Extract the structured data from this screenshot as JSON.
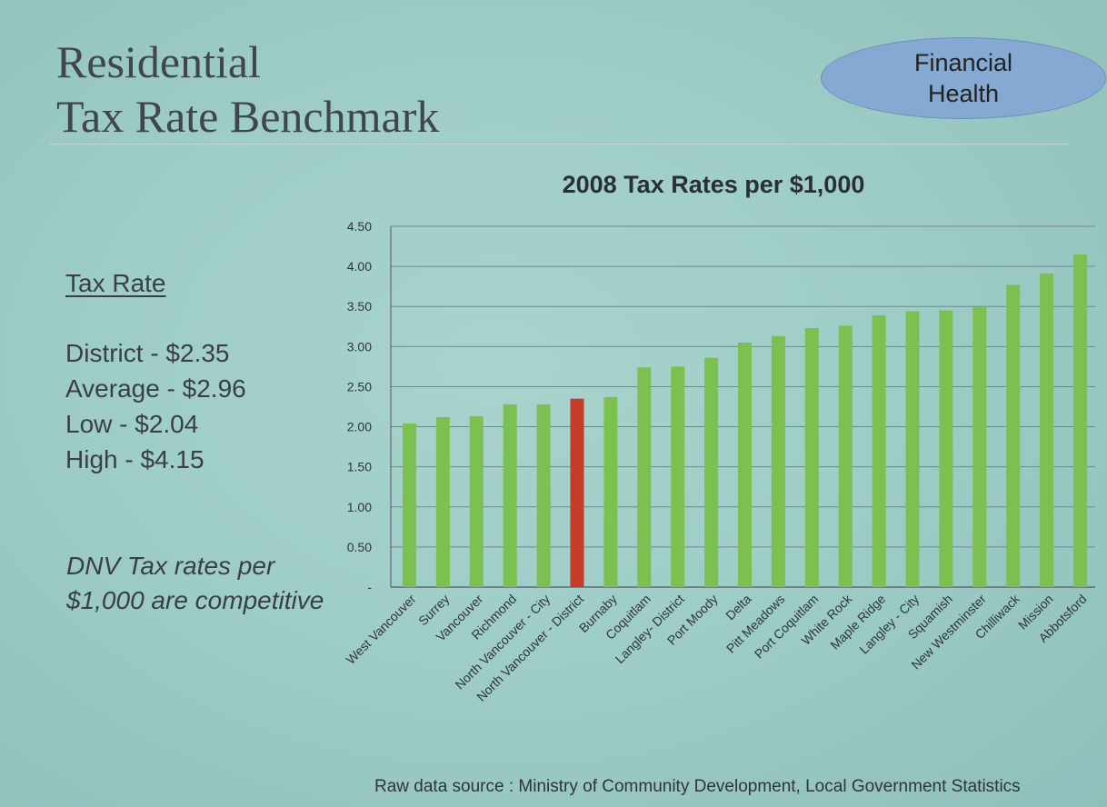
{
  "slide": {
    "title_line1": "Residential",
    "title_line2": "Tax Rate Benchmark",
    "badge_line1": "Financial",
    "badge_line2": "Health"
  },
  "summary": {
    "heading": "Tax Rate",
    "lines": [
      "District - $2.35",
      "Average - $2.96",
      "Low - $2.04",
      "High - $4.15"
    ],
    "note": "DNV Tax rates per $1,000  are competitive"
  },
  "source": "Raw data source : Ministry of Community Development, Local Government Statistics",
  "colors": {
    "bar": "#7cc04f",
    "highlight": "#c63b2a",
    "grid": "#7d7fa0"
  },
  "chart_data": {
    "type": "bar",
    "title": "2008 Tax Rates per $1,000",
    "xlabel": "",
    "ylabel": "",
    "ylim": [
      0,
      4.5
    ],
    "yticks": [
      "-",
      "0.50",
      "1.00",
      "1.50",
      "2.00",
      "2.50",
      "3.00",
      "3.50",
      "4.00",
      "4.50"
    ],
    "grid": true,
    "highlight_category": "North Vancouver - District",
    "categories": [
      "West Vancouver",
      "Surrey",
      "Vancouver",
      "Richmond",
      "North Vancouver - City",
      "North Vancouver - District",
      "Burnaby",
      "Coquitlam",
      "Langley- District",
      "Port Moody",
      "Delta",
      "Pitt Meadows",
      "Port Coquitlam",
      "White Rock",
      "Maple Ridge",
      "Langley - City",
      "Squamish",
      "New Westminster",
      "Chilliwack",
      "Mission",
      "Abbotsford"
    ],
    "values": [
      2.04,
      2.12,
      2.13,
      2.28,
      2.28,
      2.35,
      2.37,
      2.74,
      2.75,
      2.86,
      3.05,
      3.13,
      3.23,
      3.26,
      3.39,
      3.44,
      3.45,
      3.49,
      3.77,
      3.91,
      4.15
    ]
  }
}
